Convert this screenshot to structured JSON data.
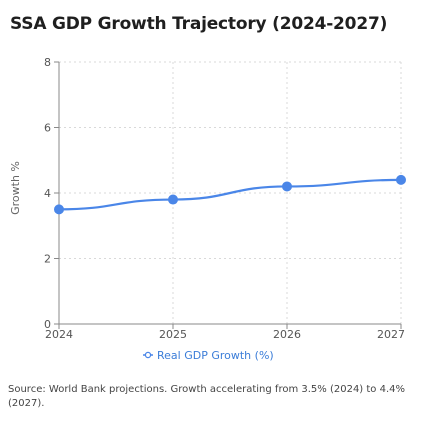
{
  "chart_data": {
    "type": "line",
    "title": "SSA GDP Growth Trajectory (2024-2027)",
    "xlabel": "",
    "ylabel": "Growth %",
    "categories": [
      "2024",
      "2025",
      "2026",
      "2027"
    ],
    "series": [
      {
        "name": "Real GDP Growth (%)",
        "values": [
          3.5,
          3.8,
          4.2,
          4.4
        ],
        "color": "#4a86e8"
      }
    ],
    "ylim": [
      0,
      8
    ],
    "yticks": [
      "0",
      "2",
      "4",
      "6",
      "8"
    ],
    "grid": true,
    "legend_position": "bottom"
  },
  "source_note": "Source: World Bank projections. Growth accelerating from 3.5% (2024) to 4.4% (2027)."
}
